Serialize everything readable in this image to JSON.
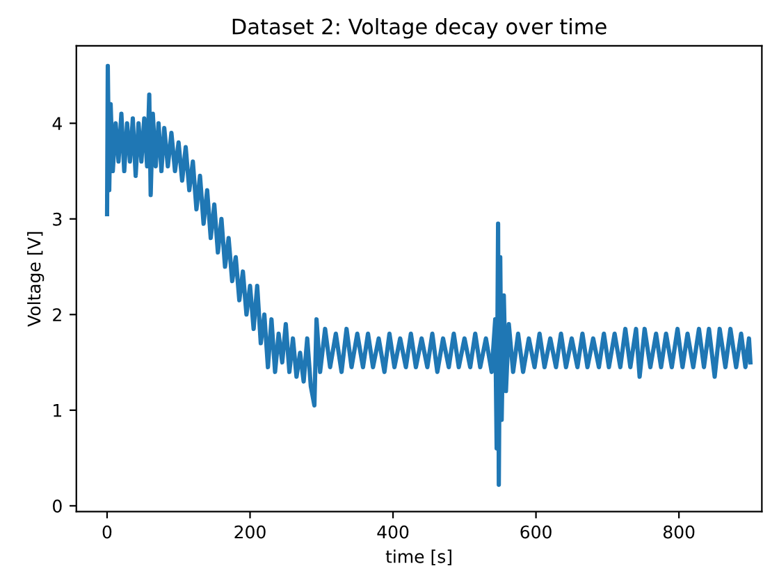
{
  "chart_data": {
    "type": "line",
    "title": "Dataset 2: Voltage decay over time",
    "xlabel": "time [s]",
    "ylabel": "Voltage [V]",
    "xlim": [
      -43,
      916
    ],
    "ylim": [
      -0.06,
      4.81
    ],
    "xticks": [
      0,
      200,
      400,
      600,
      800
    ],
    "yticks": [
      0,
      1,
      2,
      3,
      4
    ],
    "grid": false,
    "series": [
      {
        "color": "#1f77b4",
        "x": [
          0,
          1,
          3,
          5,
          8,
          12,
          16,
          20,
          24,
          28,
          32,
          36,
          40,
          44,
          48,
          52,
          56,
          59,
          61,
          64,
          68,
          72,
          76,
          80,
          85,
          90,
          95,
          100,
          105,
          110,
          115,
          120,
          125,
          130,
          135,
          140,
          145,
          150,
          155,
          160,
          165,
          170,
          175,
          180,
          185,
          190,
          195,
          200,
          205,
          210,
          215,
          220,
          225,
          230,
          235,
          240,
          245,
          250,
          255,
          260,
          265,
          270,
          275,
          280,
          285,
          290,
          293,
          298,
          305,
          312,
          320,
          328,
          335,
          342,
          350,
          358,
          365,
          372,
          380,
          388,
          395,
          402,
          410,
          418,
          425,
          432,
          440,
          448,
          455,
          462,
          470,
          478,
          485,
          492,
          500,
          508,
          515,
          522,
          530,
          538,
          543,
          545,
          547,
          548,
          550,
          552,
          555,
          558,
          562,
          568,
          575,
          582,
          590,
          598,
          605,
          612,
          620,
          628,
          635,
          642,
          650,
          658,
          665,
          672,
          680,
          688,
          695,
          702,
          710,
          718,
          725,
          732,
          740,
          745,
          752,
          760,
          768,
          775,
          782,
          790,
          798,
          805,
          812,
          820,
          828,
          835,
          842,
          850,
          857,
          865,
          872,
          880,
          887,
          893,
          898,
          900
        ],
        "values": [
          3.05,
          4.6,
          3.3,
          4.2,
          3.5,
          4.0,
          3.6,
          4.1,
          3.5,
          4.0,
          3.6,
          4.05,
          3.45,
          4.0,
          3.6,
          4.05,
          3.55,
          4.3,
          3.25,
          4.1,
          3.55,
          4.0,
          3.5,
          3.95,
          3.55,
          3.9,
          3.5,
          3.8,
          3.4,
          3.75,
          3.3,
          3.6,
          3.1,
          3.45,
          2.95,
          3.3,
          2.8,
          3.15,
          2.65,
          3.0,
          2.5,
          2.8,
          2.35,
          2.6,
          2.15,
          2.45,
          2.0,
          2.3,
          1.85,
          2.3,
          1.7,
          2.0,
          1.45,
          1.95,
          1.4,
          1.8,
          1.5,
          1.9,
          1.4,
          1.75,
          1.35,
          1.6,
          1.3,
          1.75,
          1.25,
          1.05,
          1.95,
          1.4,
          1.85,
          1.45,
          1.8,
          1.4,
          1.85,
          1.45,
          1.8,
          1.45,
          1.8,
          1.45,
          1.75,
          1.4,
          1.8,
          1.45,
          1.75,
          1.45,
          1.8,
          1.45,
          1.75,
          1.45,
          1.8,
          1.4,
          1.75,
          1.45,
          1.8,
          1.45,
          1.75,
          1.45,
          1.8,
          1.45,
          1.75,
          1.4,
          1.95,
          0.6,
          2.95,
          0.22,
          2.6,
          0.9,
          2.2,
          1.2,
          1.9,
          1.4,
          1.8,
          1.4,
          1.75,
          1.45,
          1.8,
          1.45,
          1.75,
          1.45,
          1.8,
          1.45,
          1.75,
          1.45,
          1.8,
          1.45,
          1.75,
          1.45,
          1.8,
          1.45,
          1.8,
          1.45,
          1.85,
          1.45,
          1.85,
          1.35,
          1.85,
          1.45,
          1.8,
          1.45,
          1.8,
          1.45,
          1.85,
          1.45,
          1.8,
          1.45,
          1.85,
          1.45,
          1.85,
          1.35,
          1.85,
          1.45,
          1.85,
          1.45,
          1.8,
          1.45,
          1.75,
          1.5
        ]
      }
    ]
  }
}
